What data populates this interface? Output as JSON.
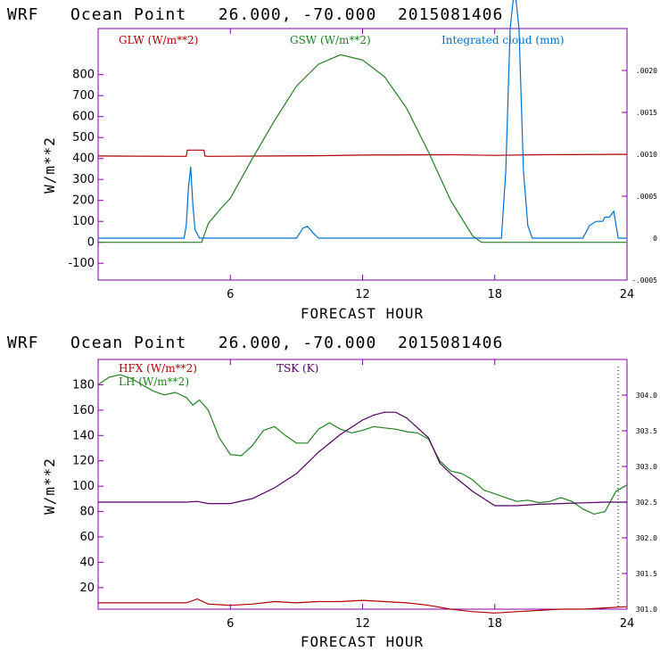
{
  "chart_data": [
    {
      "type": "line",
      "title": "WRF   Ocean Point   26.000, -70.000  2015081406",
      "xlabel": "FORECAST HOUR",
      "ylabel": "W/m**2",
      "xlim": [
        0,
        24
      ],
      "ylim": [
        -180,
        1020
      ],
      "y2lim": [
        -0.0005,
        0.0025
      ],
      "x_ticks": [
        "6",
        "12",
        "18",
        "24"
      ],
      "y_ticks": [
        "-100",
        "0",
        "100",
        "200",
        "300",
        "400",
        "500",
        "600",
        "700",
        "800"
      ],
      "y2_ticks": [
        ".0020",
        ".0015",
        ".0010",
        ".0005",
        "0",
        "-.0005"
      ],
      "series": [
        {
          "name": "GLW (W/m**2)",
          "axis": "left",
          "color": "#b00000",
          "x": [
            0,
            4.0,
            4.05,
            4.8,
            4.85,
            5.0,
            8,
            10,
            12,
            16,
            18,
            20,
            24
          ],
          "y": [
            412,
            410,
            440,
            440,
            412,
            410,
            412,
            413,
            416,
            418,
            415,
            418,
            420
          ]
        },
        {
          "name": "GSW (W/m**2)",
          "axis": "left",
          "color": "#208020",
          "x": [
            0,
            4.7,
            4.9,
            5.0,
            5.4,
            5.6,
            6,
            7,
            8,
            9,
            10,
            11,
            12,
            13,
            14,
            15,
            16,
            17,
            17.4,
            24
          ],
          "y": [
            0,
            0,
            60,
            90,
            140,
            165,
            210,
            400,
            580,
            745,
            850,
            895,
            870,
            790,
            640,
            430,
            200,
            30,
            0,
            0
          ]
        },
        {
          "name": "Integrated cloud (mm)",
          "axis": "right",
          "color": "#0070d0",
          "x": [
            0,
            3.9,
            4.0,
            4.1,
            4.2,
            4.3,
            4.4,
            4.5,
            4.6,
            5.0,
            9.0,
            9.3,
            9.5,
            9.8,
            10.0,
            18.3,
            18.5,
            18.7,
            18.9,
            19.1,
            19.3,
            19.5,
            19.7,
            22.0,
            22.3,
            22.6,
            22.9,
            23.0,
            23.2,
            23.4,
            23.6,
            24
          ],
          "y": [
            0,
            0,
            0.00015,
            0.0006,
            0.00085,
            0.0004,
            0.0001,
            5e-05,
            0,
            0,
            0,
            0.00012,
            0.00014,
            5e-05,
            0,
            0,
            0.0008,
            0.0025,
            0.003,
            0.0025,
            0.0008,
            0.00015,
            0,
            0,
            0.00015,
            0.0002,
            0.0002,
            0.00025,
            0.00025,
            0.00032,
            0,
            0
          ]
        }
      ]
    },
    {
      "type": "line",
      "title": "WRF   Ocean Point   26.000, -70.000  2015081406",
      "xlabel": "FORECAST HOUR",
      "ylabel": "W/m**2",
      "xlim": [
        0,
        24
      ],
      "ylim": [
        3,
        200
      ],
      "y2lim": [
        301.0,
        304.5
      ],
      "x_ticks": [
        "6",
        "12",
        "18",
        "24"
      ],
      "y_ticks": [
        "20",
        "40",
        "60",
        "80",
        "100",
        "120",
        "140",
        "160",
        "180"
      ],
      "y2_ticks": [
        "304.0",
        "303.5",
        "303.0",
        "302.5",
        "302.0",
        "301.5",
        "301.0"
      ],
      "series": [
        {
          "name": "HFX (W/m**2)",
          "axis": "left",
          "color": "#b00000",
          "x": [
            0,
            4.0,
            4.5,
            5.0,
            6,
            7,
            8,
            9,
            10,
            11,
            12,
            13,
            14,
            15,
            16,
            17,
            18,
            19,
            20,
            21,
            22,
            23,
            24
          ],
          "y": [
            8,
            8,
            11,
            7,
            6,
            7,
            9,
            8,
            9,
            9,
            10,
            9,
            8,
            6,
            3,
            1,
            0,
            1,
            2,
            3,
            3,
            4,
            5
          ]
        },
        {
          "name": "LH (W/m**2)",
          "axis": "left",
          "color": "#208020",
          "x": [
            0,
            0.5,
            1,
            1.5,
            2,
            2.5,
            3,
            3.5,
            4,
            4.3,
            4.6,
            5,
            5.5,
            6,
            6.5,
            7,
            7.5,
            8,
            8.5,
            9,
            9.5,
            10,
            10.5,
            11,
            11.5,
            12,
            12.5,
            13,
            13.5,
            14,
            14.5,
            15,
            15.5,
            16,
            16.5,
            17,
            17.5,
            18,
            18.5,
            19,
            19.5,
            20,
            20.5,
            21,
            21.5,
            22,
            22.5,
            23,
            23.5,
            24
          ],
          "y": [
            180,
            186,
            188,
            185,
            180,
            175,
            172,
            174,
            170,
            164,
            168,
            160,
            138,
            125,
            124,
            132,
            144,
            147,
            140,
            134,
            134,
            145,
            150,
            145,
            142,
            144,
            147,
            146,
            145,
            143,
            142,
            137,
            120,
            112,
            110,
            105,
            97,
            94,
            91,
            88,
            89,
            87,
            88,
            91,
            88,
            82,
            78,
            80,
            96,
            101
          ]
        },
        {
          "name": "TSK (K)",
          "axis": "right",
          "color": "#500060",
          "x": [
            0,
            4.0,
            4.5,
            5,
            6,
            7,
            8,
            9,
            10,
            11,
            12,
            12.5,
            13,
            13.5,
            14,
            15,
            15.5,
            16,
            17,
            18,
            19,
            20,
            21,
            22,
            23,
            24
          ],
          "y": [
            302.5,
            302.5,
            302.51,
            302.48,
            302.48,
            302.55,
            302.7,
            302.9,
            303.2,
            303.45,
            303.65,
            303.72,
            303.76,
            303.76,
            303.68,
            303.4,
            303.05,
            302.9,
            302.65,
            302.45,
            302.45,
            302.47,
            302.48,
            302.49,
            302.5,
            302.5
          ]
        }
      ]
    }
  ],
  "colors": {
    "frame": "#8000a0",
    "text": "#000000"
  }
}
